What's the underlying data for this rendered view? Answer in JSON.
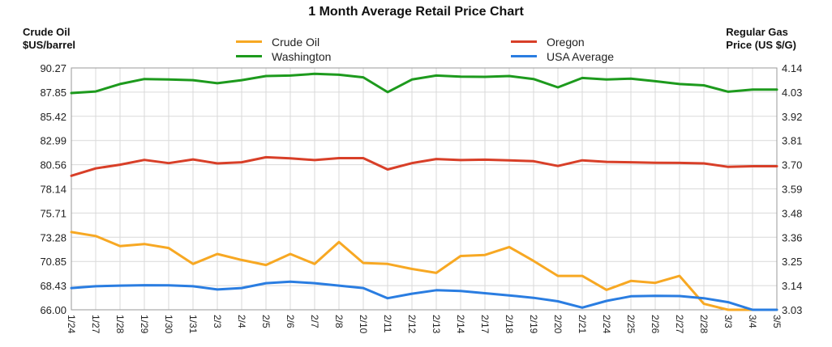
{
  "chart_data": {
    "type": "line",
    "title": "1 Month Average Retail Price Chart",
    "left_axis_label": [
      "Crude Oil",
      "$US/barrel"
    ],
    "right_axis_label": [
      "Regular Gas",
      "Price (US $/G)"
    ],
    "categories": [
      "1/24",
      "1/27",
      "1/28",
      "1/29",
      "1/30",
      "1/31",
      "2/3",
      "2/4",
      "2/5",
      "2/6",
      "2/7",
      "2/8",
      "2/10",
      "2/11",
      "2/12",
      "2/13",
      "2/14",
      "2/17",
      "2/18",
      "2/19",
      "2/20",
      "2/21",
      "2/24",
      "2/25",
      "2/26",
      "2/27",
      "2/28",
      "3/3",
      "3/4",
      "3/5"
    ],
    "left_ticks": [
      "90.27",
      "87.85",
      "85.42",
      "82.99",
      "80.56",
      "78.14",
      "75.71",
      "73.28",
      "70.85",
      "68.43",
      "66.00"
    ],
    "right_ticks": [
      "4.14",
      "4.03",
      "3.92",
      "3.81",
      "3.70",
      "3.59",
      "3.48",
      "3.36",
      "3.25",
      "3.14",
      "3.03"
    ],
    "ylim_left": [
      66.0,
      90.27
    ],
    "ylim_right": [
      3.03,
      4.14
    ],
    "grid": true,
    "legend_position": "top",
    "series": [
      {
        "name": "Crude Oil",
        "axis": "left",
        "color": "#f7a823",
        "values": [
          73.8,
          73.4,
          72.4,
          72.6,
          72.2,
          70.6,
          71.6,
          71.0,
          70.5,
          71.6,
          70.6,
          72.8,
          70.7,
          70.6,
          70.1,
          69.7,
          71.4,
          71.5,
          72.3,
          70.9,
          69.4,
          69.4,
          68.0,
          68.9,
          68.7,
          69.4,
          66.6,
          66.0,
          65.8,
          65.7
        ]
      },
      {
        "name": "Washington",
        "axis": "right",
        "color": "#1d9a1d",
        "values": [
          4.025,
          4.032,
          4.066,
          4.089,
          4.087,
          4.084,
          4.07,
          4.084,
          4.103,
          4.105,
          4.113,
          4.109,
          4.097,
          4.029,
          4.087,
          4.105,
          4.1,
          4.099,
          4.103,
          4.089,
          4.051,
          4.094,
          4.087,
          4.091,
          4.079,
          4.066,
          4.06,
          4.031,
          4.041,
          4.041
        ]
      },
      {
        "name": "Oregon",
        "axis": "right",
        "color": "#d83f28",
        "values": [
          3.645,
          3.679,
          3.696,
          3.718,
          3.703,
          3.72,
          3.702,
          3.707,
          3.73,
          3.725,
          3.717,
          3.726,
          3.726,
          3.674,
          3.703,
          3.722,
          3.717,
          3.719,
          3.716,
          3.712,
          3.69,
          3.716,
          3.709,
          3.707,
          3.705,
          3.704,
          3.702,
          3.686,
          3.689,
          3.689
        ]
      },
      {
        "name": "USA Average",
        "axis": "right",
        "color": "#2a7de1",
        "values": [
          3.13,
          3.138,
          3.141,
          3.143,
          3.142,
          3.138,
          3.123,
          3.13,
          3.152,
          3.159,
          3.152,
          3.141,
          3.13,
          3.083,
          3.104,
          3.12,
          3.116,
          3.106,
          3.096,
          3.085,
          3.069,
          3.04,
          3.071,
          3.092,
          3.094,
          3.093,
          3.083,
          3.065,
          3.03,
          3.03
        ]
      }
    ]
  }
}
